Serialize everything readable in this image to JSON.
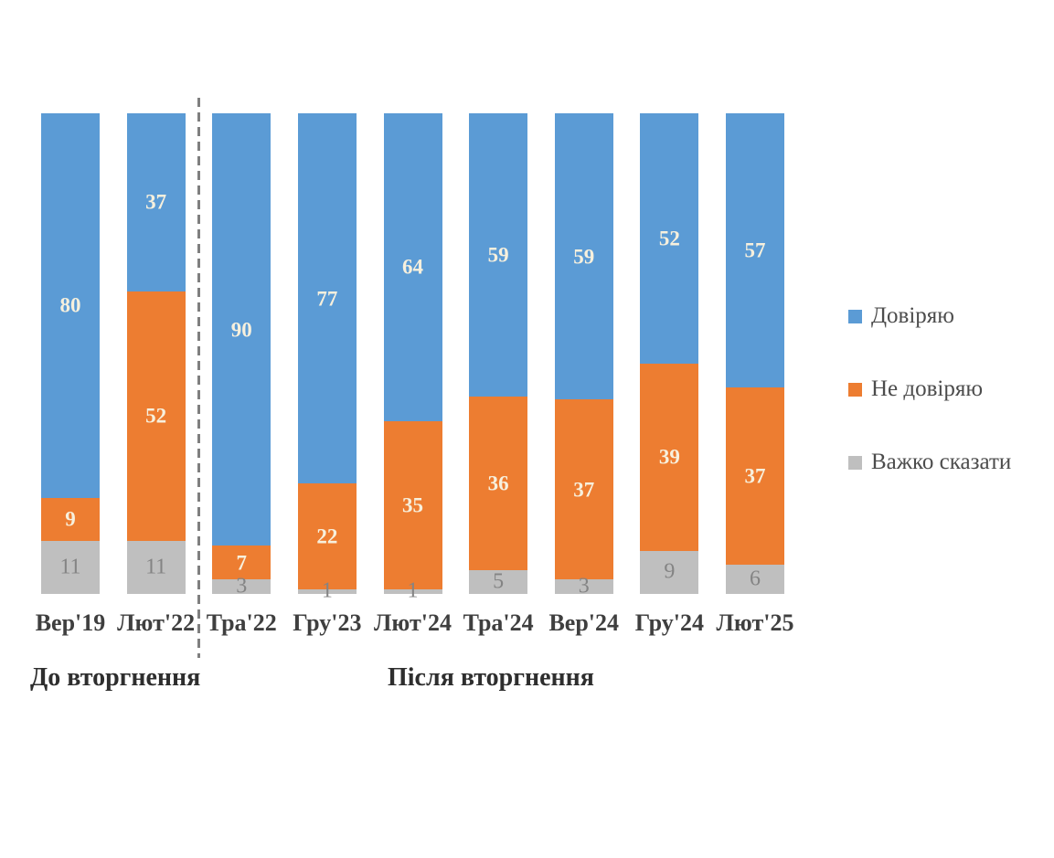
{
  "chart_data": {
    "type": "bar",
    "variant": "stacked-100-percent",
    "grid": false,
    "legend_position": "right",
    "categories": [
      "Вер'19",
      "Лют'22",
      "Тра'22",
      "Гру'23",
      "Лют'24",
      "Тра'24",
      "Вер'24",
      "Гру'24",
      "Лют'25"
    ],
    "series": [
      {
        "key": "trust",
        "name": "Довіряю",
        "color": "#5B9BD5",
        "label_color": "#F7F0DD",
        "label_bold": true,
        "values": [
          80,
          37,
          90,
          77,
          64,
          59,
          59,
          52,
          57
        ]
      },
      {
        "key": "distrust",
        "name": "Не довіряю",
        "color": "#ED7D31",
        "label_color": "#F7F0DD",
        "label_bold": true,
        "values": [
          9,
          52,
          7,
          22,
          35,
          36,
          37,
          39,
          37
        ]
      },
      {
        "key": "hard-to-say",
        "name": "Важко сказати",
        "color": "#BFBFBF",
        "label_color": "#848484",
        "label_bold": false,
        "values": [
          11,
          11,
          3,
          1,
          1,
          5,
          3,
          9,
          6
        ]
      }
    ],
    "group_labels": [
      "До вторгнення",
      "Після вторгнення"
    ],
    "divider": {
      "after_category": "Лют'22",
      "style": "dashed",
      "color": "#7F7F7F"
    }
  }
}
